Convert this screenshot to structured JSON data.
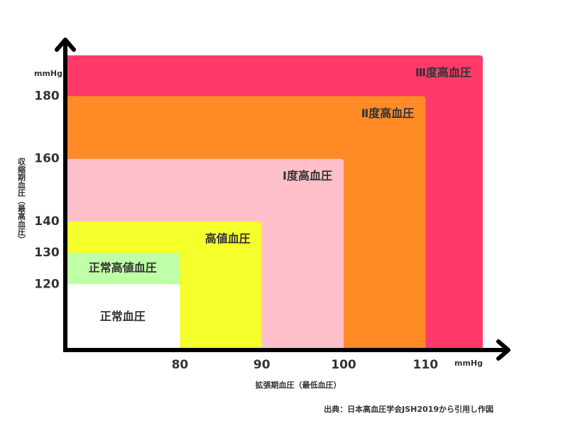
{
  "chart_data": {
    "type": "nested-rect",
    "y_unit": "mmHg",
    "x_unit": "mmHg",
    "y_label": "収縮期血圧（最高血圧）",
    "x_label": "拡張期血圧（最低血圧）",
    "source": "出典：日本高血圧学会JSH2019から引用し作図",
    "xlim": [
      66,
      117
    ],
    "ylim": [
      99,
      193
    ],
    "xticks": [
      80,
      90,
      100,
      110
    ],
    "yticks": [
      120,
      130,
      140,
      160,
      180
    ],
    "regions": [
      {
        "label": "正常血圧",
        "x": 80,
        "y": 120,
        "color": "#ffffff"
      },
      {
        "label": "正常高値血圧",
        "x": 80,
        "y": 130,
        "color": "#bfffa8"
      },
      {
        "label": "高値血圧",
        "x": 90,
        "y": 140,
        "color": "#f5ff2b"
      },
      {
        "label": "Ⅰ度高血圧",
        "x": 100,
        "y": 160,
        "color": "#ffc0cb"
      },
      {
        "label": "Ⅱ度高血圧",
        "x": 110,
        "y": 180,
        "color": "#ff8a26"
      },
      {
        "label": "Ⅲ度高血圧",
        "color": "#ff3a6b"
      }
    ]
  }
}
